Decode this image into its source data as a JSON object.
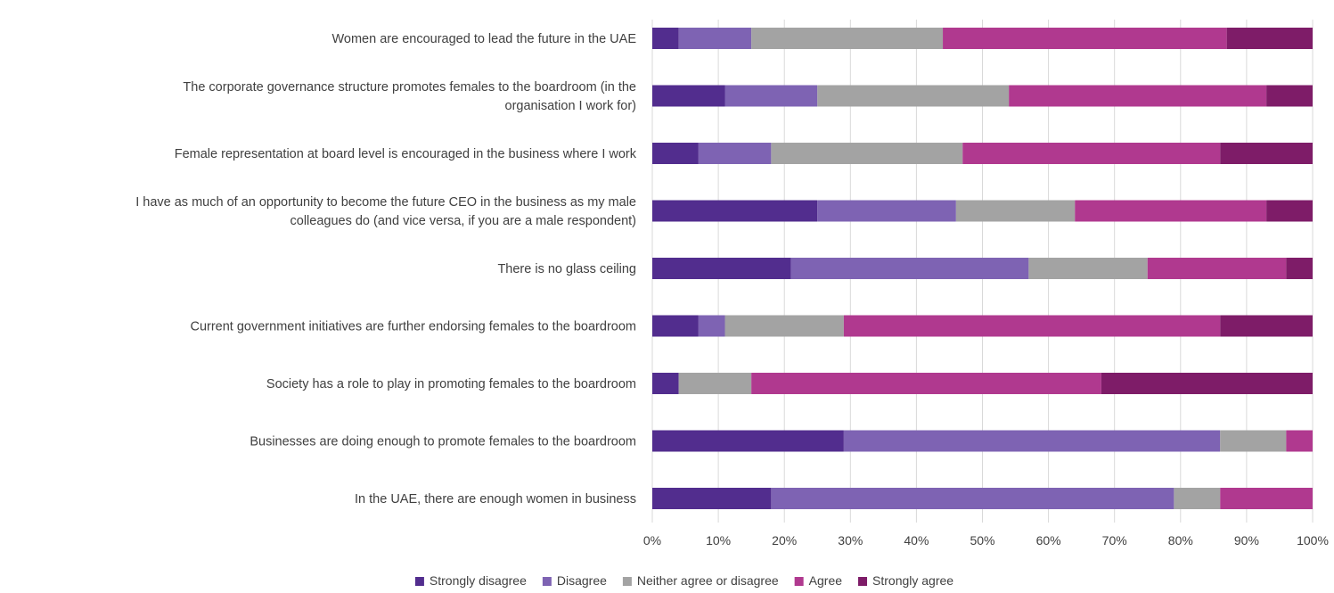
{
  "chart_data": {
    "type": "bar",
    "orientation": "horizontal",
    "stacked": "percent",
    "title": "",
    "xlabel": "",
    "ylabel": "",
    "xlim": [
      0,
      100
    ],
    "grid": "vertical",
    "legend_position": "bottom",
    "x_ticks": [
      "0%",
      "10%",
      "20%",
      "30%",
      "40%",
      "50%",
      "60%",
      "70%",
      "80%",
      "90%",
      "100%"
    ],
    "categories": [
      [
        "Women are encouraged to lead the future in the UAE"
      ],
      [
        "The corporate governance structure promotes females to the boardroom (in the",
        "organisation I work for)"
      ],
      [
        "Female representation at board level is encouraged in the business where I work"
      ],
      [
        "I have as much of an opportunity to become the future CEO in the business as my male",
        "colleagues do (and vice versa, if you are a male respondent)"
      ],
      [
        "There is no glass ceiling"
      ],
      [
        "Current government initiatives are further endorsing females to the boardroom"
      ],
      [
        "Society has a role to play in promoting females to the boardroom"
      ],
      [
        "Businesses are doing enough to promote females to the boardroom"
      ],
      [
        "In the UAE, there are enough women in business"
      ]
    ],
    "series": [
      {
        "name": "Strongly disagree",
        "color": "#522d8e",
        "values": [
          4,
          11,
          7,
          25,
          21,
          7,
          4,
          29,
          18
        ]
      },
      {
        "name": "Disagree",
        "color": "#7e63b3",
        "values": [
          11,
          14,
          11,
          21,
          36,
          4,
          0,
          57,
          61
        ]
      },
      {
        "name": "Neither agree or disagree",
        "color": "#a3a3a3",
        "values": [
          29,
          29,
          29,
          18,
          18,
          18,
          11,
          10,
          7
        ]
      },
      {
        "name": "Agree",
        "color": "#b0398f",
        "values": [
          43,
          39,
          39,
          29,
          21,
          57,
          53,
          4,
          14
        ]
      },
      {
        "name": "Strongly agree",
        "color": "#7e1c68",
        "values": [
          13,
          7,
          14,
          7,
          4,
          14,
          32,
          0,
          0
        ]
      }
    ]
  }
}
